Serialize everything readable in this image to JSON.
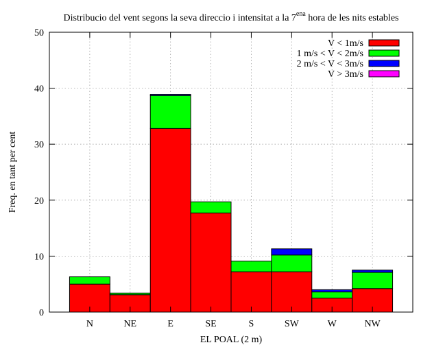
{
  "chart_data": {
    "type": "bar",
    "stacked": true,
    "title_main": "Distribucio del vent segons la seva direccio i intensitat a la 7",
    "title_sup": "ena",
    "title_end": " hora de les nits estables",
    "xlabel": "EL POAL (2 m)",
    "ylabel": "Freq. en tant per cent",
    "ylim": [
      0,
      50
    ],
    "yticks": [
      "0",
      "10",
      "20",
      "30",
      "40",
      "50"
    ],
    "grid": true,
    "legend_position": "top-right",
    "categories": [
      "N",
      "NE",
      "E",
      "SE",
      "S",
      "SW",
      "W",
      "NW"
    ],
    "series": [
      {
        "name": "V < 1m/s",
        "color": "#ff0000",
        "values": [
          5.0,
          3.1,
          32.8,
          17.7,
          7.2,
          7.2,
          2.5,
          4.2
        ]
      },
      {
        "name": "1 m/s < V < 2m/s",
        "color": "#00ff00",
        "values": [
          1.3,
          0.3,
          5.9,
          2.0,
          1.9,
          3.0,
          1.1,
          2.9
        ]
      },
      {
        "name": "2 m/s < V < 3m/s",
        "color": "#0000ff",
        "values": [
          0.0,
          0.0,
          0.2,
          0.0,
          0.0,
          1.1,
          0.4,
          0.4
        ]
      },
      {
        "name": "V > 3m/s",
        "color": "#ff00ff",
        "values": [
          0,
          0,
          0,
          0,
          0,
          0,
          0,
          0
        ]
      }
    ]
  }
}
